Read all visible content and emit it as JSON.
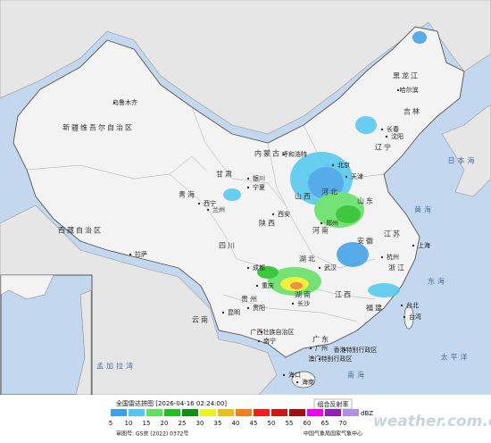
{
  "legend": {
    "title": "全国雷达拼图 [2026-04-16 02:24:00]",
    "product": "组合反射率",
    "unit": "dBZ",
    "levels": [
      {
        "value": 5,
        "color": "#3ba0e8"
      },
      {
        "value": 10,
        "color": "#50c8f0"
      },
      {
        "value": 15,
        "color": "#60e060"
      },
      {
        "value": 20,
        "color": "#20c020"
      },
      {
        "value": 25,
        "color": "#109010"
      },
      {
        "value": 30,
        "color": "#f0f020"
      },
      {
        "value": 35,
        "color": "#e8c020"
      },
      {
        "value": 40,
        "color": "#f08020"
      },
      {
        "value": 45,
        "color": "#f02020"
      },
      {
        "value": 50,
        "color": "#c81818"
      },
      {
        "value": 55,
        "color": "#a01010"
      },
      {
        "value": 60,
        "color": "#f000f0"
      },
      {
        "value": 65,
        "color": "#9020b0"
      },
      {
        "value": 70,
        "color": "#b090e0"
      }
    ]
  },
  "footer": {
    "approval": "审图号: GS京 (2022) 0372号",
    "agency": "中国气象局国家气象中心"
  },
  "watermark": "weather.com.cn",
  "places": [
    "新疆维吾尔自治区",
    "乌鲁木齐",
    "西藏自治区",
    "拉萨",
    "青海",
    "西宁",
    "甘肃",
    "兰州",
    "内蒙古",
    "呼和浩特",
    "宁夏",
    "银川",
    "黑龙江",
    "哈尔滨",
    "吉林",
    "长春",
    "辽宁",
    "沈阳",
    "北京",
    "天津",
    "河北",
    "山西",
    "陕西",
    "西安",
    "河南",
    "郑州",
    "山东",
    "江苏",
    "上海",
    "安徽",
    "湖北",
    "武汉",
    "浙江",
    "杭州",
    "四川",
    "成都",
    "重庆",
    "贵州",
    "贵阳",
    "湖南",
    "长沙",
    "江西",
    "福建",
    "台湾",
    "台北",
    "云南",
    "昆明",
    "广西壮族自治区",
    "南宁",
    "广东",
    "广州",
    "香港特别行政区",
    "澳门特别行政区",
    "海南",
    "海口",
    "日本海",
    "黄海",
    "东海",
    "太平洋",
    "孟加拉湾",
    "南海"
  ]
}
